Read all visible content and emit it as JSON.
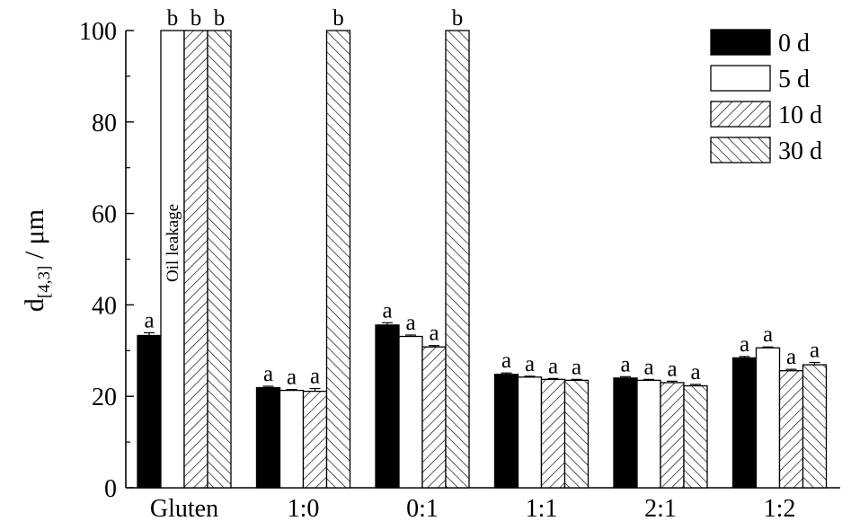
{
  "chart_data": {
    "type": "bar",
    "title": "",
    "xlabel": "",
    "ylabel": {
      "main": "d",
      "sub": "[4,3]",
      "unit": " / μm"
    },
    "ylim": [
      0,
      100
    ],
    "yticks": [
      0,
      20,
      40,
      60,
      80,
      100
    ],
    "grid": false,
    "legend_position": "top-right",
    "categories": [
      "Gluten",
      "1:0",
      "0:1",
      "1:1",
      "2:1",
      "1:2"
    ],
    "series": [
      {
        "name": "0 d",
        "pattern": "solid-black",
        "values": [
          33.3,
          21.9,
          35.6,
          24.8,
          24.0,
          28.4
        ],
        "errors": [
          0.6,
          0.3,
          0.5,
          0.3,
          0.3,
          0.3
        ],
        "sig": [
          "a",
          "a",
          "a",
          "a",
          "a",
          "a"
        ]
      },
      {
        "name": "5 d",
        "pattern": "white",
        "values": [
          100,
          21.3,
          33.1,
          24.2,
          23.5,
          30.6
        ],
        "errors": [
          0,
          0.2,
          0.3,
          0.2,
          0.2,
          0.2
        ],
        "sig": [
          "b",
          "a",
          "a",
          "a",
          "a",
          "a"
        ]
      },
      {
        "name": "10 d",
        "pattern": "hatch-forward",
        "values": [
          100,
          21.1,
          30.8,
          23.7,
          23.0,
          25.6
        ],
        "errors": [
          0,
          0.6,
          0.3,
          0.2,
          0.3,
          0.3
        ],
        "sig": [
          "b",
          "a",
          "a",
          "a",
          "a",
          "a"
        ]
      },
      {
        "name": "30 d",
        "pattern": "hatch-back",
        "values": [
          100,
          100,
          100,
          23.5,
          22.3,
          26.9
        ],
        "errors": [
          0,
          0,
          0,
          0.2,
          0.3,
          0.5
        ],
        "sig": [
          "b",
          "b",
          "b",
          "a",
          "a",
          "a"
        ]
      }
    ],
    "annotations": [
      {
        "text": "Oil leakage",
        "category": "Gluten",
        "series": "5 d"
      }
    ],
    "colors": {
      "bar_outline": "#000000",
      "solid_fill": "#000000",
      "open_fill": "#ffffff"
    }
  }
}
